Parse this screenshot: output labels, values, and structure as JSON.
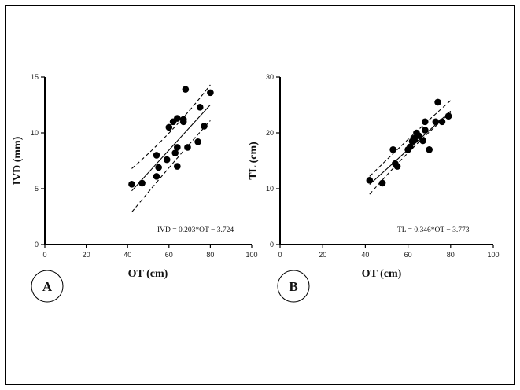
{
  "chart_data": [
    {
      "type": "scatter",
      "panel": "A",
      "xlabel": "OT (cm)",
      "ylabel": "IVD (mm)",
      "xlim": [
        0,
        100
      ],
      "ylim": [
        0,
        15
      ],
      "xticks": [
        "0",
        "20",
        "40",
        "60",
        "80",
        "100"
      ],
      "yticks": [
        "0",
        "5",
        "10",
        "15"
      ],
      "equation": "IVD = 0.203*OT − 3.724",
      "regression": {
        "slope": 0.203,
        "intercept": -3.724,
        "x_range": [
          42,
          80
        ]
      },
      "ci_lower": [
        [
          42,
          2.9
        ],
        [
          62,
          7.4
        ],
        [
          80,
          11.1
        ]
      ],
      "ci_upper": [
        [
          42,
          6.8
        ],
        [
          62,
          10.0
        ],
        [
          80,
          14.3
        ]
      ],
      "points": [
        [
          42,
          5.4
        ],
        [
          47,
          5.5
        ],
        [
          54,
          6.1
        ],
        [
          54,
          8.0
        ],
        [
          55,
          6.9
        ],
        [
          59,
          7.6
        ],
        [
          60,
          10.5
        ],
        [
          62,
          11.0
        ],
        [
          63,
          8.2
        ],
        [
          64,
          11.3
        ],
        [
          64,
          8.7
        ],
        [
          64,
          7.0
        ],
        [
          67,
          11.2
        ],
        [
          67,
          11.0
        ],
        [
          68,
          13.9
        ],
        [
          69,
          8.7
        ],
        [
          74,
          9.2
        ],
        [
          75,
          12.3
        ],
        [
          77,
          10.6
        ],
        [
          80,
          13.6
        ]
      ]
    },
    {
      "type": "scatter",
      "panel": "B",
      "xlabel": "OT (cm)",
      "ylabel": "TL (cm)",
      "xlim": [
        0,
        100
      ],
      "ylim": [
        0,
        30
      ],
      "xticks": [
        "0",
        "20",
        "40",
        "60",
        "80",
        "100"
      ],
      "yticks": [
        "0",
        "10",
        "20",
        "30"
      ],
      "equation": "TL = 0.346*OT − 3.773",
      "regression": {
        "slope": 0.346,
        "intercept": -3.773,
        "x_range": [
          42,
          80
        ]
      },
      "ci_lower": [
        [
          42,
          9.0
        ],
        [
          62,
          17.7
        ],
        [
          80,
          23.6
        ]
      ],
      "ci_upper": [
        [
          42,
          12.2
        ],
        [
          62,
          19.7
        ],
        [
          80,
          25.8
        ]
      ],
      "points": [
        [
          42,
          11.5
        ],
        [
          48,
          11.0
        ],
        [
          53,
          17.0
        ],
        [
          54,
          14.5
        ],
        [
          55,
          14.0
        ],
        [
          60,
          17.0
        ],
        [
          61,
          17.5
        ],
        [
          62,
          18.5
        ],
        [
          63,
          19.0
        ],
        [
          63,
          18.7
        ],
        [
          64,
          20.0
        ],
        [
          65,
          19.5
        ],
        [
          67,
          18.6
        ],
        [
          68,
          20.5
        ],
        [
          68,
          22.0
        ],
        [
          70,
          17.0
        ],
        [
          73,
          22.0
        ],
        [
          74,
          25.5
        ],
        [
          76,
          22.0
        ],
        [
          79,
          23.0
        ]
      ]
    }
  ]
}
